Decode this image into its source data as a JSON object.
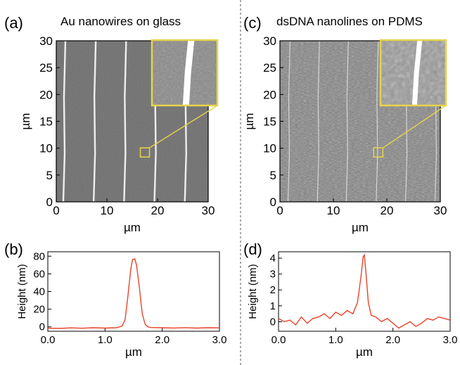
{
  "figure": {
    "colors": {
      "line_trace": "#e8432a",
      "highlight_box": "#e6d44a",
      "afm_background_a": "#6b6b6b",
      "afm_background_c": "#7a7a7a",
      "nanowire": "#f4f4f4",
      "divider": "#555555"
    },
    "panels": {
      "a": {
        "letter": "(a)",
        "title": "Au nanowires on glass"
      },
      "b": {
        "letter": "(b)"
      },
      "c": {
        "letter": "(c)",
        "title": "dsDNA nanolines on PDMS"
      },
      "d": {
        "letter": "(d)"
      }
    }
  },
  "chart_data": [
    {
      "panel": "a",
      "type": "heatmap",
      "xlabel": "µm",
      "ylabel": "µm",
      "xlim": [
        0,
        30
      ],
      "ylim": [
        0,
        30
      ],
      "xticks": [
        "0",
        "10",
        "20",
        "30"
      ],
      "yticks": [
        "0",
        "5",
        "10",
        "15",
        "20",
        "25",
        "30"
      ],
      "highlight_region_um": {
        "x": 17.5,
        "y": 9.2
      },
      "nanowire_x_um": [
        1.8,
        7.8,
        13.8,
        19.8,
        25.8
      ]
    },
    {
      "panel": "b",
      "type": "line",
      "xlabel": "µm",
      "ylabel": "Height (nm)",
      "xlim": [
        0,
        3.0
      ],
      "ylim": [
        -5,
        85
      ],
      "xticks": [
        "0.0",
        "1.0",
        "2.0",
        "3.0"
      ],
      "yticks": [
        "0",
        "20",
        "40",
        "60",
        "80"
      ],
      "series": [
        {
          "x": [
            0.0,
            0.2,
            0.4,
            0.6,
            0.8,
            1.0,
            1.2,
            1.3,
            1.35,
            1.4,
            1.45,
            1.48,
            1.52,
            1.55,
            1.6,
            1.65,
            1.7,
            1.75,
            1.8,
            2.0,
            2.2,
            2.4,
            2.6,
            2.8,
            3.0
          ],
          "values": [
            -1.5,
            -1.8,
            -1.2,
            -1.6,
            -1.0,
            -1.4,
            -1.0,
            1.0,
            8.0,
            35.0,
            65.0,
            76.0,
            77.0,
            70.0,
            45.0,
            15.0,
            3.0,
            0.0,
            -0.8,
            -1.0,
            -1.3,
            -0.9,
            -1.4,
            -1.0,
            -1.2
          ]
        }
      ]
    },
    {
      "panel": "c",
      "type": "heatmap",
      "xlabel": "µm",
      "ylabel": "µm",
      "xlim": [
        0,
        30
      ],
      "ylim": [
        0,
        30
      ],
      "xticks": [
        "0",
        "10",
        "20",
        "30"
      ],
      "yticks": [
        "0",
        "5",
        "10",
        "15",
        "20",
        "25",
        "30"
      ],
      "highlight_region_um": {
        "x": 18.4,
        "y": 9.2
      },
      "nanowire_x_um": [
        1.9,
        7.4,
        12.8,
        18.4,
        23.9,
        29.4
      ]
    },
    {
      "panel": "d",
      "type": "line",
      "xlabel": "µm",
      "ylabel": "Height (nm)",
      "xlim": [
        0,
        3.0
      ],
      "ylim": [
        -0.6,
        4.4
      ],
      "xticks": [
        "0.0",
        "1.0",
        "2.0",
        "3.0"
      ],
      "yticks": [
        "0",
        "1",
        "2",
        "3",
        "4"
      ],
      "series": [
        {
          "x": [
            0.0,
            0.1,
            0.2,
            0.3,
            0.4,
            0.5,
            0.6,
            0.7,
            0.8,
            0.9,
            1.0,
            1.1,
            1.2,
            1.3,
            1.38,
            1.44,
            1.48,
            1.5,
            1.53,
            1.57,
            1.62,
            1.7,
            1.8,
            1.9,
            2.0,
            2.1,
            2.2,
            2.3,
            2.4,
            2.5,
            2.6,
            2.7,
            2.8,
            2.9,
            3.0
          ],
          "values": [
            0.2,
            0.0,
            0.1,
            -0.2,
            0.3,
            -0.1,
            0.2,
            0.3,
            0.5,
            0.2,
            0.6,
            0.4,
            0.7,
            0.5,
            1.2,
            2.8,
            4.1,
            4.2,
            3.0,
            1.2,
            0.4,
            0.3,
            0.0,
            0.2,
            -0.1,
            -0.4,
            -0.2,
            0.0,
            -0.3,
            -0.1,
            0.2,
            0.1,
            0.3,
            0.2,
            0.1
          ]
        }
      ]
    }
  ]
}
